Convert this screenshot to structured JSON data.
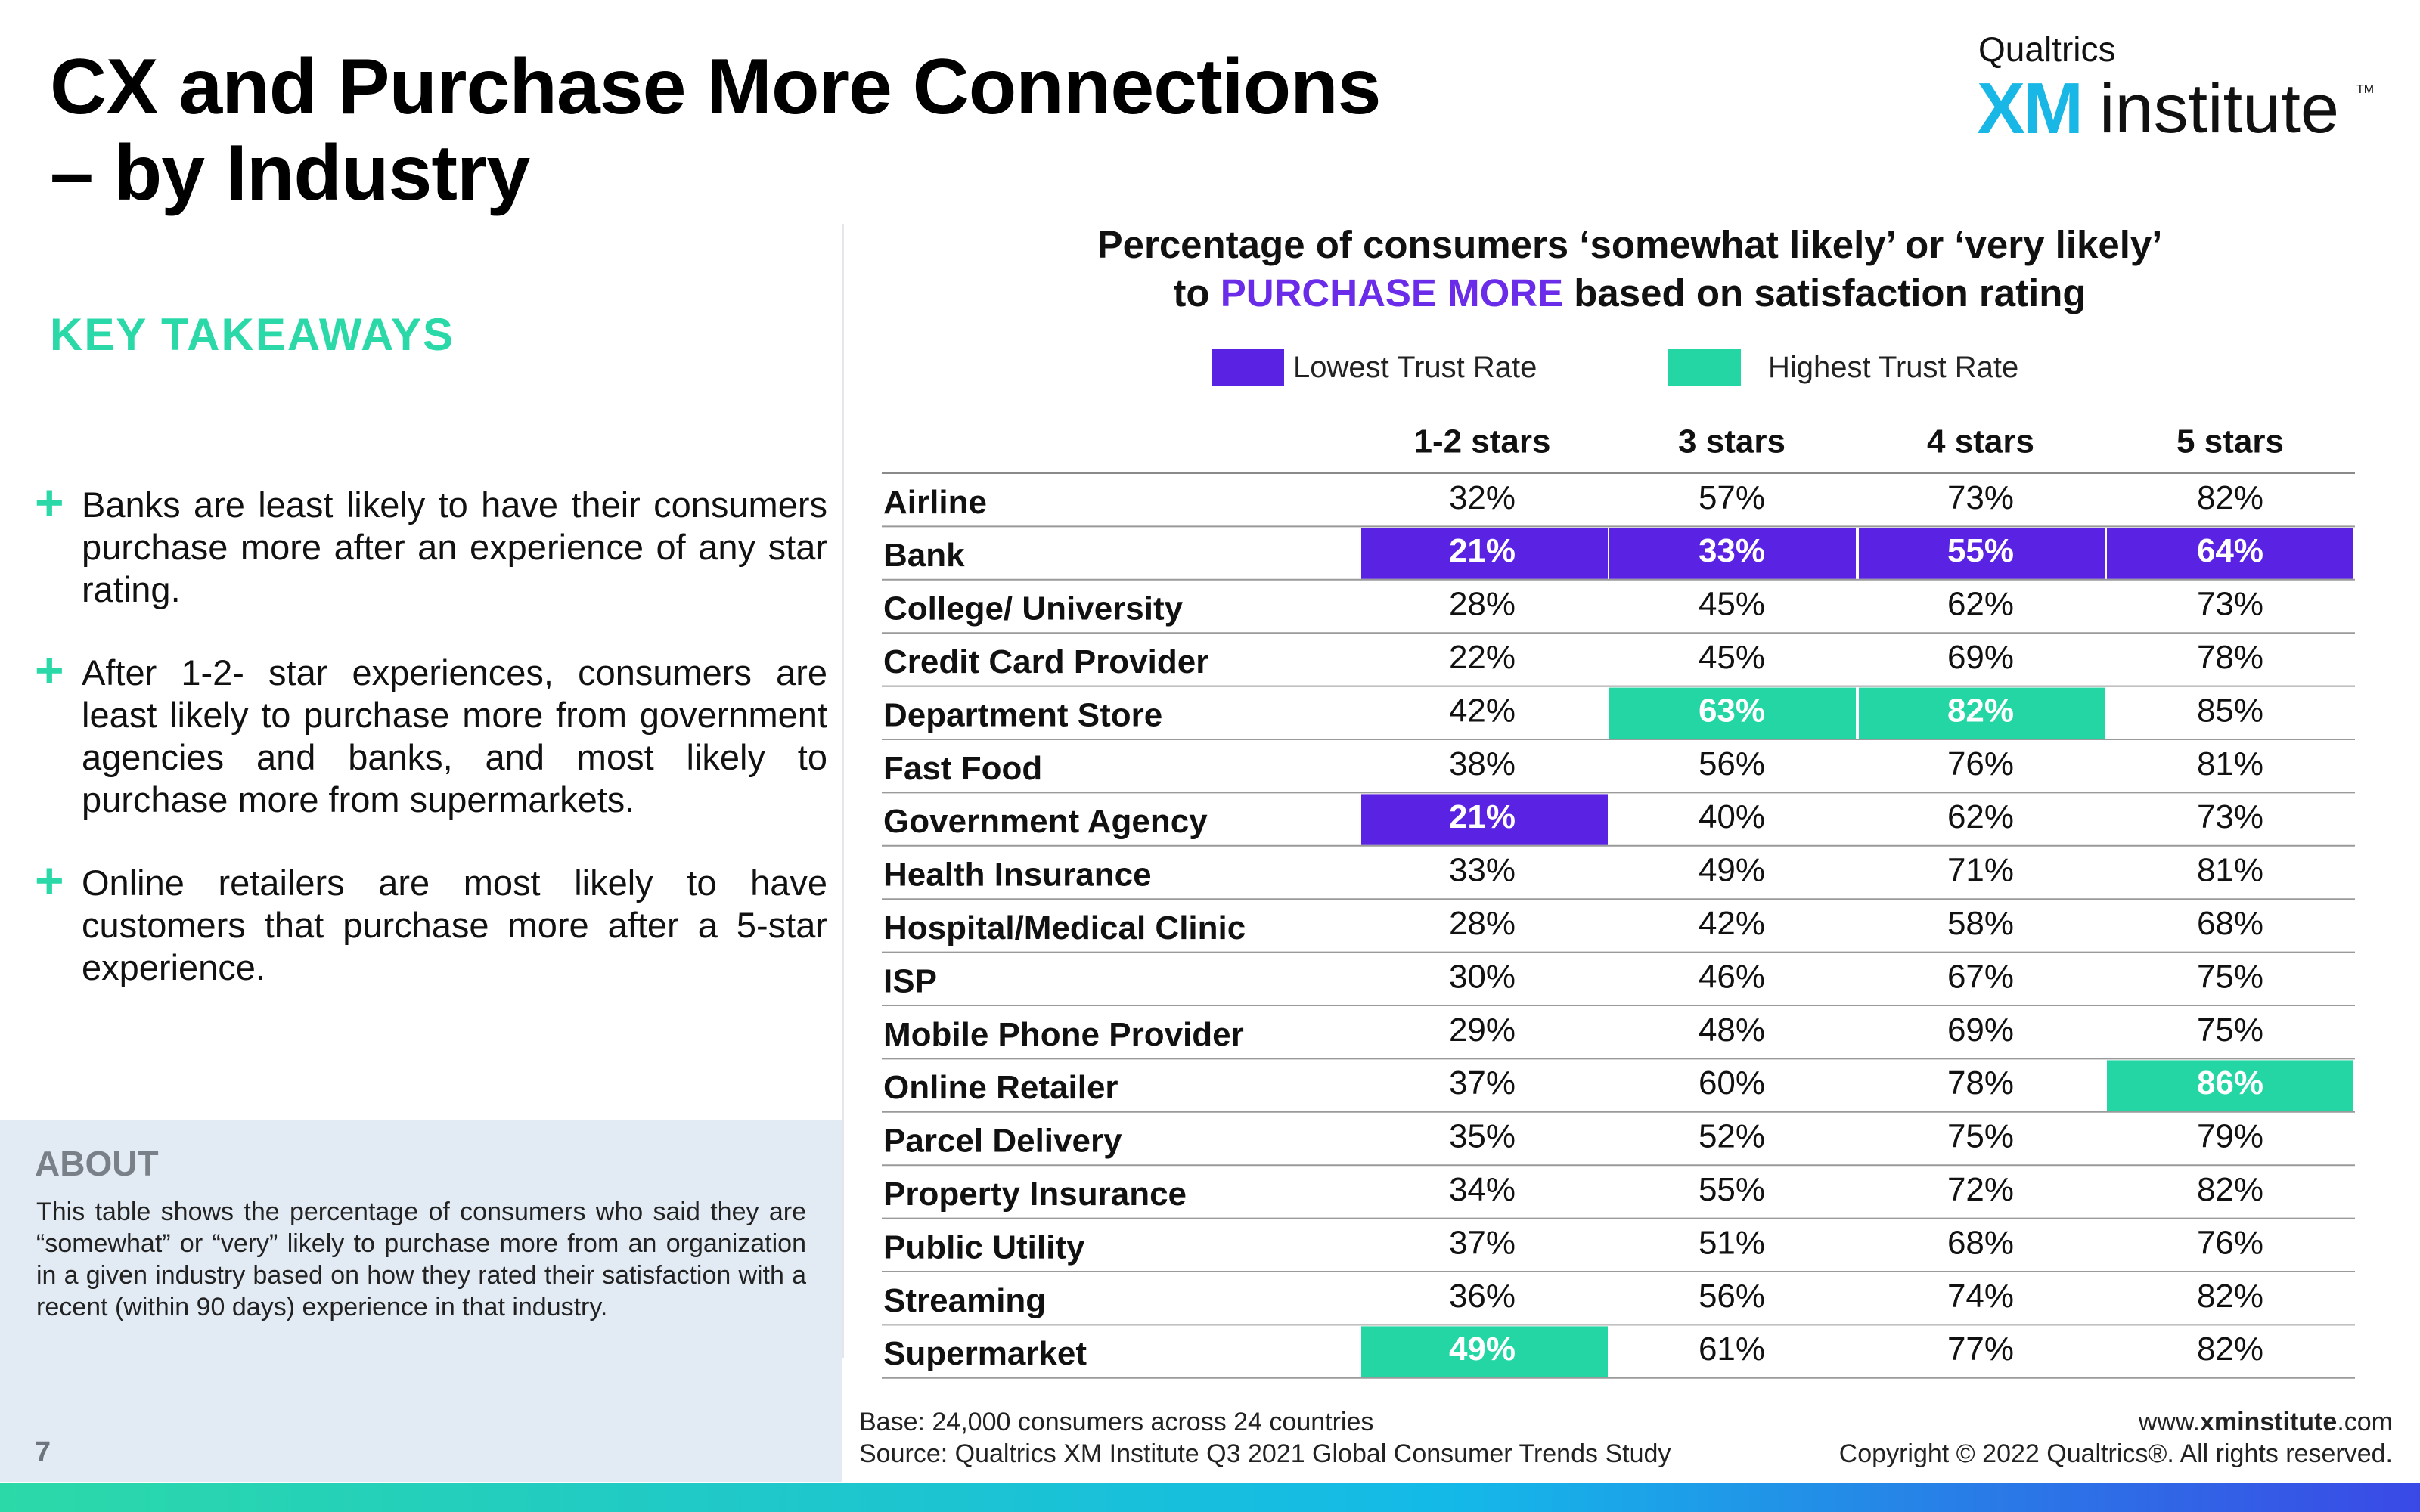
{
  "title_lines": [
    "CX and Purchase More Connections",
    "– by Industry"
  ],
  "logo": {
    "brand": "Qualtrics",
    "xm": "XM",
    "word": "institute",
    "tm": "TM"
  },
  "key_takeaways": {
    "heading": "KEY TAKEAWAYS",
    "items": [
      "Banks are least likely to have their consumers purchase more after an experience of any star rating.",
      "After 1-2- star experiences, consumers are least likely to purchase more from government agencies and banks, and most likely to purchase more from supermarkets.",
      "Online retailers are most likely to have customers that purchase more after a 5-star experience."
    ]
  },
  "about": {
    "heading": "ABOUT",
    "text": "This table shows the percentage of consumers who said they are “somewhat” or “very” likely to purchase more from an organization in a given industry based on how they rated their satisfaction with a recent (within 90 days) experience in that industry."
  },
  "page_number": "7",
  "colors": {
    "low": "#5a22e3",
    "high": "#25d6a5",
    "accent_text": "#6a2ce8",
    "takeaway_green": "#2bd9a8"
  },
  "chart_data": {
    "type": "table",
    "title_line1": "Percentage of consumers ‘somewhat likely’ or ‘very likely’",
    "title_line2_prefix": "to ",
    "title_line2_highlight": "PURCHASE MORE",
    "title_line2_suffix": " based on satisfaction rating",
    "legend": [
      {
        "label": "Lowest Trust Rate",
        "key": "low",
        "color": "#5a22e3"
      },
      {
        "label": "Highest Trust Rate",
        "key": "high",
        "color": "#25d6a5"
      }
    ],
    "columns": [
      "1-2 stars",
      "3 stars",
      "4 stars",
      "5 stars"
    ],
    "rows": [
      {
        "label": "Airline",
        "values": [
          "32%",
          "57%",
          "73%",
          "82%"
        ]
      },
      {
        "label": "Bank",
        "values": [
          "21%",
          "33%",
          "55%",
          "64%"
        ],
        "highlight": [
          "low",
          "low",
          "low",
          "low"
        ]
      },
      {
        "label": "College/ University",
        "values": [
          "28%",
          "45%",
          "62%",
          "73%"
        ]
      },
      {
        "label": "Credit Card Provider",
        "values": [
          "22%",
          "45%",
          "69%",
          "78%"
        ]
      },
      {
        "label": "Department Store",
        "values": [
          "42%",
          "63%",
          "82%",
          "85%"
        ],
        "highlight": [
          null,
          "high",
          "high",
          null
        ]
      },
      {
        "label": "Fast Food",
        "values": [
          "38%",
          "56%",
          "76%",
          "81%"
        ]
      },
      {
        "label": "Government Agency",
        "values": [
          "21%",
          "40%",
          "62%",
          "73%"
        ],
        "highlight": [
          "low",
          null,
          null,
          null
        ]
      },
      {
        "label": "Health Insurance",
        "values": [
          "33%",
          "49%",
          "71%",
          "81%"
        ]
      },
      {
        "label": "Hospital/Medical Clinic",
        "values": [
          "28%",
          "42%",
          "58%",
          "68%"
        ]
      },
      {
        "label": "ISP",
        "values": [
          "30%",
          "46%",
          "67%",
          "75%"
        ]
      },
      {
        "label": "Mobile Phone Provider",
        "values": [
          "29%",
          "48%",
          "69%",
          "75%"
        ]
      },
      {
        "label": "Online Retailer",
        "values": [
          "37%",
          "60%",
          "78%",
          "86%"
        ],
        "highlight": [
          null,
          null,
          null,
          "high"
        ]
      },
      {
        "label": "Parcel Delivery",
        "values": [
          "35%",
          "52%",
          "75%",
          "79%"
        ]
      },
      {
        "label": "Property Insurance",
        "values": [
          "34%",
          "55%",
          "72%",
          "82%"
        ]
      },
      {
        "label": "Public Utility",
        "values": [
          "37%",
          "51%",
          "68%",
          "76%"
        ]
      },
      {
        "label": "Streaming",
        "values": [
          "36%",
          "56%",
          "74%",
          "82%"
        ]
      },
      {
        "label": "Supermarket",
        "values": [
          "49%",
          "61%",
          "77%",
          "82%"
        ],
        "highlight": [
          "high",
          null,
          null,
          null
        ]
      }
    ]
  },
  "footer": {
    "base_line": "Base: 24,000 consumers across 24 countries",
    "source_line": "Source: Qualtrics XM Institute Q3 2021 Global Consumer Trends Study",
    "site_prefix": "www.",
    "site_bold": "xminstitute",
    "site_suffix": ".com",
    "copyright": "Copyright © 2022 Qualtrics®. All rights reserved."
  }
}
